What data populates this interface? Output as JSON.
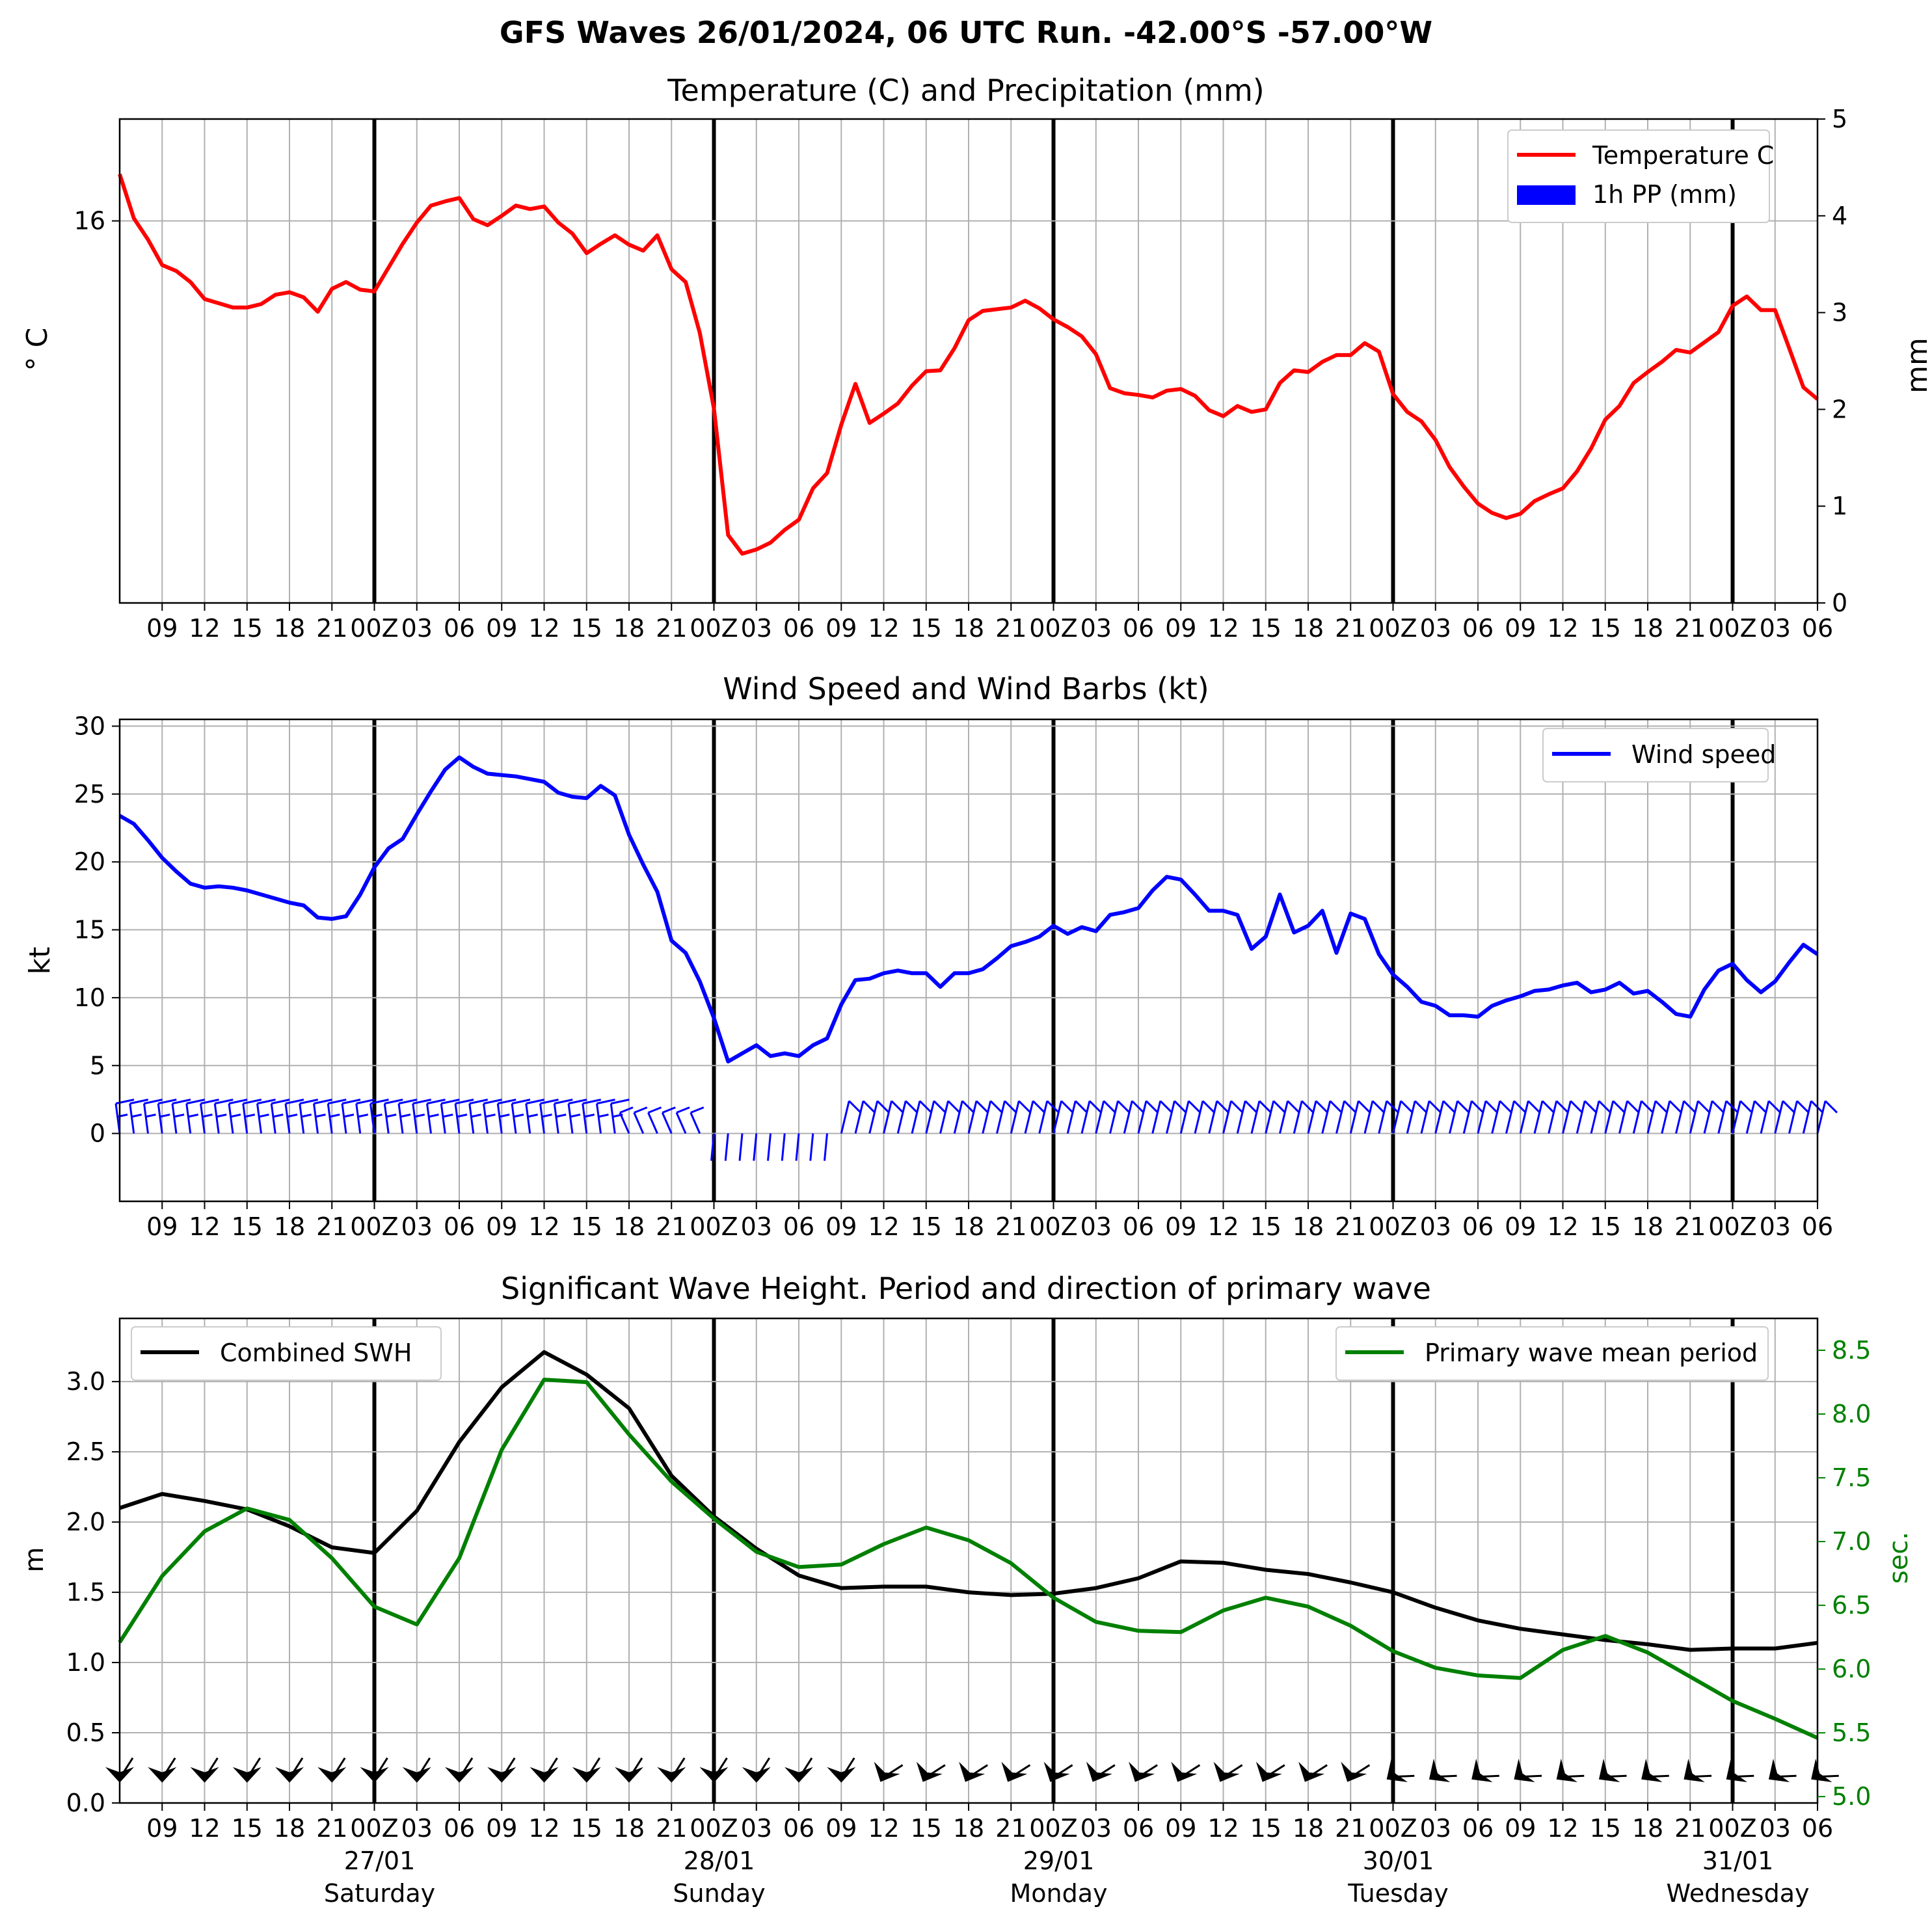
{
  "suptitle": "GFS Waves 26/01/2024, 06 UTC Run. -42.00°S -57.00°W",
  "colors": {
    "temperature": "#ff0000",
    "precip": "#0000ff",
    "wind": "#0000ff",
    "swh": "#000000",
    "period": "#008000",
    "grid": "#b0b0b0"
  },
  "chart_data": [
    {
      "type": "line",
      "title": "Temperature (C) and Precipitation (mm)",
      "ylabel": "$^\\circ$C",
      "ylabel_display": "° C",
      "y2label": "mm",
      "x_start": "2024-01-26T06:00Z",
      "x_step_hours": 1,
      "ylim": [
        11.5,
        17.2
      ],
      "y_ticks": [
        "16"
      ],
      "y2lim": [
        0,
        5
      ],
      "y2_ticks": [
        "0",
        "1",
        "2",
        "3",
        "4",
        "5"
      ],
      "legend": [
        "Temperature C",
        "1h PP (mm)"
      ],
      "legend_loc": "upper right",
      "x_tick_labels": [
        "09",
        "12",
        "15",
        "18",
        "21",
        "00Z",
        "03",
        "06",
        "09",
        "12",
        "15",
        "18",
        "21",
        "00Z",
        "03",
        "06",
        "09",
        "12",
        "15",
        "18",
        "21",
        "00Z",
        "03",
        "06",
        "09",
        "12",
        "15",
        "18",
        "21",
        "00Z",
        "03",
        "06",
        "09",
        "12",
        "15",
        "18",
        "21",
        "00Z",
        "03",
        "06"
      ],
      "series": [
        {
          "name": "Temperature C",
          "color": "#ff0000",
          "values": [
            16.55,
            16.03,
            15.78,
            15.48,
            15.41,
            15.28,
            15.08,
            15.03,
            14.98,
            14.98,
            15.02,
            15.13,
            15.16,
            15.1,
            14.93,
            15.2,
            15.28,
            15.19,
            15.17,
            15.45,
            15.73,
            15.98,
            16.18,
            16.23,
            16.27,
            16.02,
            15.95,
            16.06,
            16.18,
            16.14,
            16.17,
            15.98,
            15.85,
            15.62,
            15.73,
            15.83,
            15.72,
            15.65,
            15.83,
            15.43,
            15.28,
            14.68,
            13.79,
            12.3,
            12.08,
            12.13,
            12.21,
            12.36,
            12.48,
            12.85,
            13.03,
            13.6,
            14.08,
            13.62,
            13.73,
            13.85,
            14.06,
            14.23,
            14.24,
            14.5,
            14.83,
            14.94,
            14.96,
            14.98,
            15.06,
            14.97,
            14.84,
            14.75,
            14.64,
            14.43,
            14.03,
            13.97,
            13.95,
            13.92,
            14.0,
            14.02,
            13.94,
            13.77,
            13.7,
            13.82,
            13.75,
            13.78,
            14.09,
            14.24,
            14.22,
            14.34,
            14.42,
            14.42,
            14.56,
            14.46,
            13.96,
            13.75,
            13.64,
            13.42,
            13.1,
            12.87,
            12.67,
            12.56,
            12.5,
            12.55,
            12.7,
            12.78,
            12.85,
            13.05,
            13.32,
            13.66,
            13.82,
            14.09,
            14.22,
            14.34,
            14.48,
            14.45,
            14.57,
            14.69,
            15.0,
            15.11,
            14.95,
            14.95,
            14.5,
            14.04,
            13.9
          ]
        },
        {
          "name": "1h PP (mm)",
          "color": "#0000ff",
          "values": []
        }
      ]
    },
    {
      "type": "line",
      "title": "Wind Speed and Wind Barbs (kt)",
      "ylabel": "kt",
      "ylim": [
        -5,
        30.5
      ],
      "y_ticks": [
        "0",
        "5",
        "10",
        "15",
        "20",
        "25",
        "30"
      ],
      "legend": [
        "Wind speed"
      ],
      "legend_loc": "upper right",
      "x_start": "2024-01-26T06:00Z",
      "x_step_hours": 1,
      "x_tick_labels": [
        "09",
        "12",
        "15",
        "18",
        "21",
        "00Z",
        "03",
        "06",
        "09",
        "12",
        "15",
        "18",
        "21",
        "00Z",
        "03",
        "06",
        "09",
        "12",
        "15",
        "18",
        "21",
        "00Z",
        "03",
        "06",
        "09",
        "12",
        "15",
        "18",
        "21",
        "00Z",
        "03",
        "06",
        "09",
        "12",
        "15",
        "18",
        "21",
        "00Z",
        "03",
        "06"
      ],
      "series": [
        {
          "name": "Wind speed",
          "color": "#0000ff",
          "values": [
            23.4,
            22.8,
            21.6,
            20.3,
            19.3,
            18.4,
            18.1,
            18.2,
            18.1,
            17.9,
            17.6,
            17.3,
            17.0,
            16.8,
            15.9,
            15.8,
            16.0,
            17.6,
            19.6,
            21.0,
            21.7,
            23.5,
            25.2,
            26.8,
            27.7,
            27.0,
            26.5,
            26.4,
            26.3,
            26.1,
            25.9,
            25.1,
            24.8,
            24.7,
            25.6,
            24.9,
            22.0,
            19.8,
            17.8,
            14.2,
            13.3,
            11.2,
            8.5,
            5.3,
            5.9,
            6.5,
            5.7,
            5.9,
            5.7,
            6.5,
            7.0,
            9.5,
            11.3,
            11.4,
            11.8,
            12.0,
            11.8,
            11.8,
            10.8,
            11.8,
            11.8,
            12.1,
            12.9,
            13.8,
            14.1,
            14.5,
            15.3,
            14.7,
            15.2,
            14.9,
            16.1,
            16.3,
            16.6,
            17.9,
            18.9,
            18.7,
            17.6,
            16.4,
            16.4,
            16.1,
            13.6,
            14.5,
            17.6,
            14.8,
            15.3,
            16.4,
            13.3,
            16.2,
            15.8,
            13.2,
            11.7,
            10.8,
            9.7,
            9.4,
            8.7,
            8.7,
            8.6,
            9.4,
            9.8,
            10.1,
            10.5,
            10.6,
            10.9,
            11.1,
            10.4,
            10.6,
            11.1,
            10.3,
            10.5,
            9.7,
            8.8,
            8.6,
            10.6,
            12.0,
            12.5,
            11.3,
            10.4,
            11.2,
            12.6,
            13.9,
            13.2
          ]
        }
      ]
    },
    {
      "type": "line",
      "title": "Significant Wave Height. Period and direction of primary wave",
      "ylabel": "m",
      "y2label": "sec.",
      "ylim": [
        0,
        3.45
      ],
      "y_ticks": [
        "0.0",
        "0.5",
        "1.0",
        "1.5",
        "2.0",
        "2.5",
        "3.0"
      ],
      "y2lim": [
        4.95,
        8.75
      ],
      "y2_ticks": [
        "5.0",
        "5.5",
        "6.0",
        "6.5",
        "7.0",
        "7.5",
        "8.0",
        "8.5"
      ],
      "legend_left": "Combined SWH",
      "legend_right": "Primary wave mean period",
      "x_start": "2024-01-26T06:00Z",
      "x_step_hours": 3,
      "x_tick_labels": [
        "09",
        "12",
        "15",
        "18",
        "21",
        "00Z",
        "03",
        "06",
        "09",
        "12",
        "15",
        "18",
        "21",
        "00Z",
        "03",
        "06",
        "09",
        "12",
        "15",
        "18",
        "21",
        "00Z",
        "03",
        "06",
        "09",
        "12",
        "15",
        "18",
        "21",
        "00Z",
        "03",
        "06",
        "09",
        "12",
        "15",
        "18",
        "21",
        "00Z",
        "03",
        "06"
      ],
      "date_labels": [
        {
          "date": "27/01",
          "day": "Saturday"
        },
        {
          "date": "28/01",
          "day": "Sunday"
        },
        {
          "date": "29/01",
          "day": "Monday"
        },
        {
          "date": "30/01",
          "day": "Tuesday"
        },
        {
          "date": "31/01",
          "day": "Wednesday"
        }
      ],
      "series": [
        {
          "name": "Combined SWH",
          "color": "#000000",
          "values": [
            2.1,
            2.2,
            2.15,
            2.09,
            1.97,
            1.82,
            1.78,
            2.08,
            2.57,
            2.96,
            3.21,
            3.05,
            2.81,
            2.33,
            2.04,
            1.81,
            1.62,
            1.53,
            1.54,
            1.54,
            1.5,
            1.48,
            1.49,
            1.53,
            1.6,
            1.72,
            1.71,
            1.66,
            1.63,
            1.57,
            1.5,
            1.39,
            1.3,
            1.24,
            1.2,
            1.16,
            1.13,
            1.09,
            1.1,
            1.1,
            1.14
          ]
        },
        {
          "name": "Primary wave mean period",
          "color": "#008000",
          "values": [
            6.21,
            6.73,
            7.08,
            7.26,
            7.17,
            6.87,
            6.49,
            6.35,
            6.87,
            7.72,
            8.27,
            8.25,
            7.84,
            7.47,
            7.18,
            6.92,
            6.8,
            6.82,
            6.98,
            7.11,
            7.01,
            6.83,
            6.56,
            6.37,
            6.3,
            6.29,
            6.46,
            6.56,
            6.49,
            6.34,
            6.14,
            6.01,
            5.95,
            5.93,
            6.15,
            6.26,
            6.13,
            5.94,
            5.75,
            5.61,
            5.46
          ]
        }
      ]
    }
  ]
}
